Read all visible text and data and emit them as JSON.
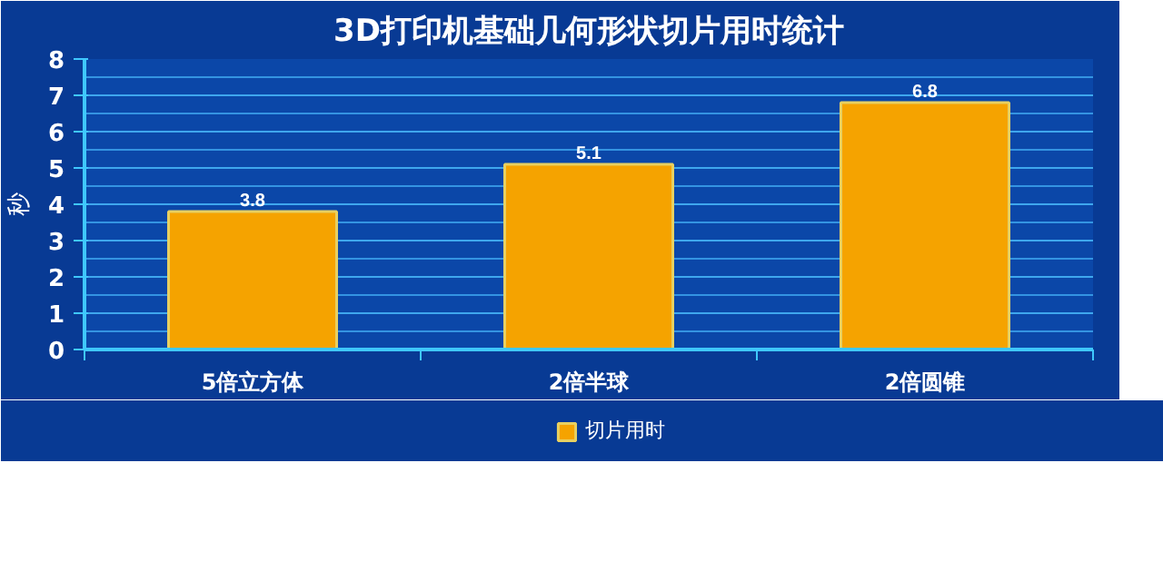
{
  "chart_data": {
    "type": "bar",
    "title": "3D打印机基础几何形状切片用时统计",
    "ylabel": "秒",
    "categories": [
      "5倍立方体",
      "2倍半球",
      "2倍圆锥"
    ],
    "series": [
      {
        "name": "切片用时",
        "color": "#f5a300",
        "values": [
          3.8,
          5.1,
          6.8
        ]
      }
    ],
    "ylim": [
      0,
      8
    ],
    "yticks": [
      0,
      1,
      2,
      3,
      4,
      5,
      6,
      7,
      8
    ],
    "grid": "y",
    "data_labels": true,
    "legend": "bottom"
  }
}
